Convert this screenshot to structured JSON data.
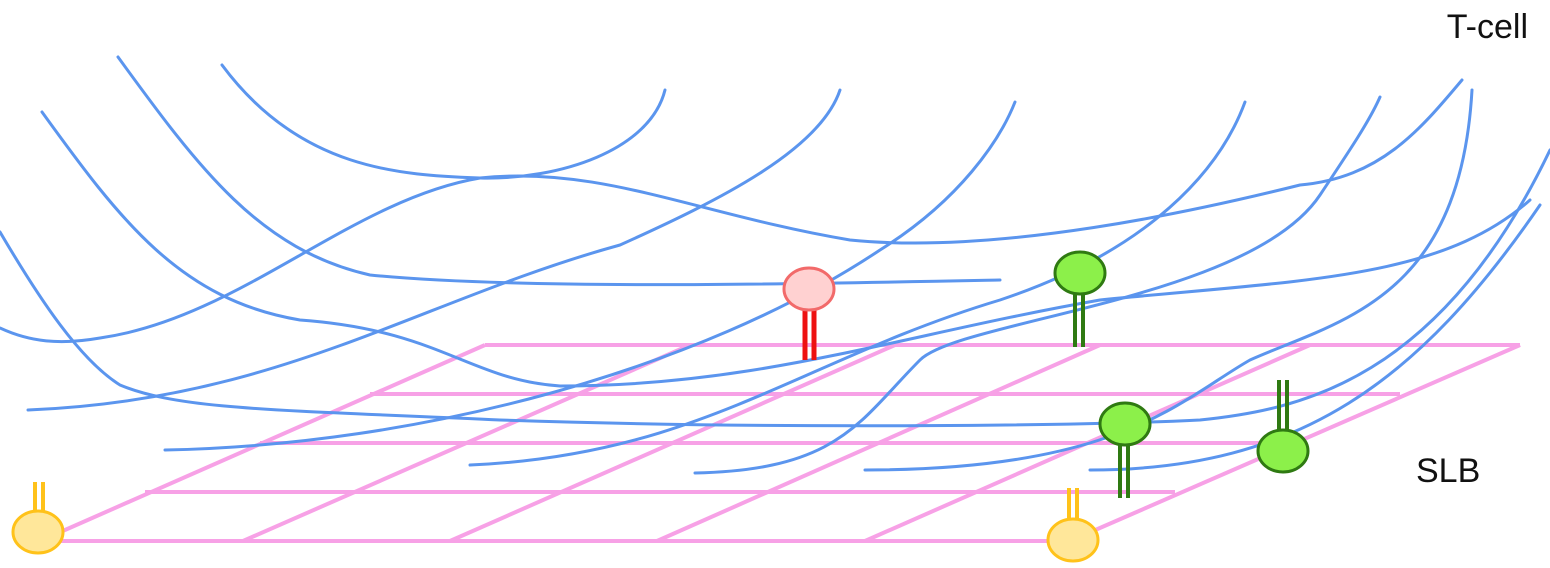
{
  "labels": {
    "tcell": "T-cell",
    "slb": "SLB"
  },
  "colors": {
    "actin": "#5b95ee",
    "grid": "#f7a1e6",
    "red_fill": "#ffd1d1",
    "red_stroke": "#f26a6a",
    "red_stem": "#ee1111",
    "green_fill": "#8cf04a",
    "green_stroke": "#2f7a12",
    "yellow_fill": "#ffe79a",
    "yellow_stroke": "#ffc21a"
  },
  "molecules": [
    {
      "name": "red-receptor-tcell",
      "kind": "red"
    },
    {
      "name": "green-receptor-tcell",
      "kind": "green"
    },
    {
      "name": "green-ligand-slb-center",
      "kind": "green"
    },
    {
      "name": "green-ligand-slb-right",
      "kind": "green"
    },
    {
      "name": "yellow-ligand-slb-left",
      "kind": "yellow"
    },
    {
      "name": "yellow-ligand-slb-center",
      "kind": "yellow"
    }
  ]
}
